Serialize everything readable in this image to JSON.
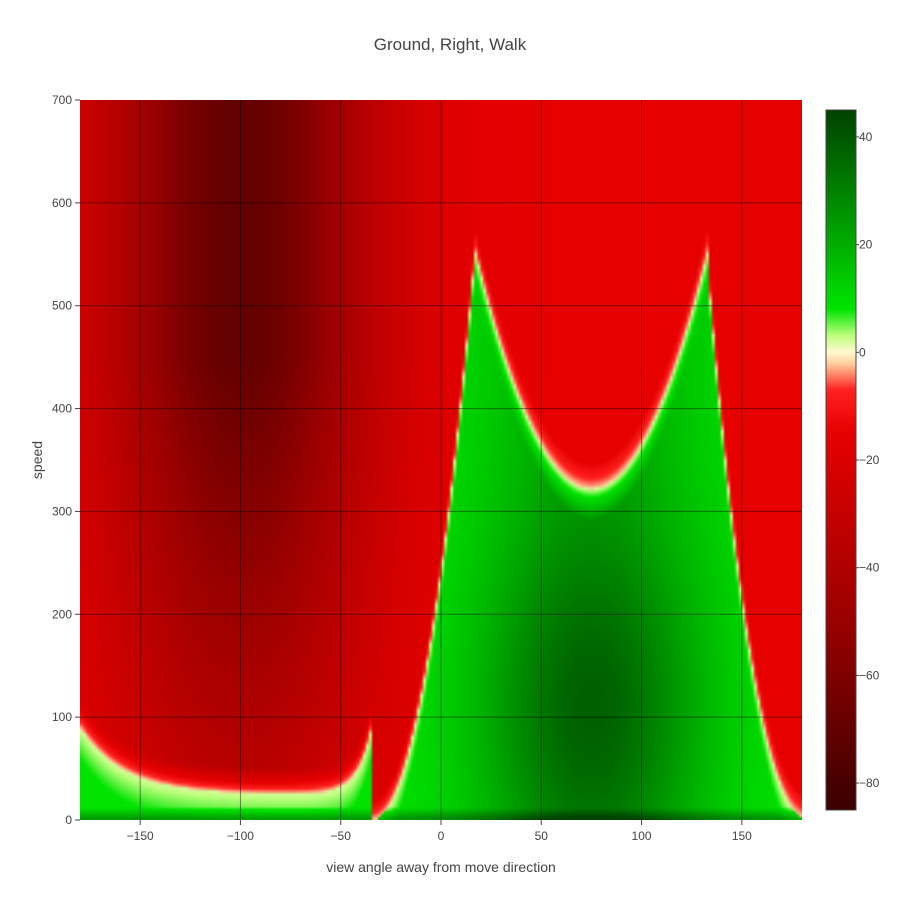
{
  "chart_data": {
    "type": "heatmap",
    "title": "Ground, Right, Walk",
    "xlabel": "view angle away from move direction",
    "ylabel": "speed",
    "xlim": [
      -180,
      180
    ],
    "ylim": [
      0,
      700
    ],
    "x_ticks": [
      -150,
      -100,
      -50,
      0,
      50,
      100,
      150
    ],
    "x_tick_labels": [
      "−150",
      "−100",
      "−50",
      "0",
      "50",
      "100",
      "150"
    ],
    "y_ticks": [
      0,
      100,
      200,
      300,
      400,
      500,
      600,
      700
    ],
    "y_tick_labels": [
      "0",
      "100",
      "200",
      "300",
      "400",
      "500",
      "600",
      "700"
    ],
    "grid": true,
    "colorbar": {
      "range": [
        -85,
        45
      ],
      "ticks": [
        40,
        20,
        0,
        -20,
        -40,
        -60,
        -80
      ],
      "tick_labels": [
        "40",
        "20",
        "0",
        "−20",
        "−40",
        "−60",
        "−80"
      ],
      "colorscale": [
        [
          -85,
          "#3a0000"
        ],
        [
          -50,
          "#9a0000"
        ],
        [
          -15,
          "#e60000"
        ],
        [
          -7,
          "#ff2020"
        ],
        [
          -2,
          "#ffd0a0"
        ],
        [
          0,
          "#fff8d0"
        ],
        [
          3,
          "#c0ff80"
        ],
        [
          8,
          "#00e400"
        ],
        [
          25,
          "#009600"
        ],
        [
          45,
          "#004200"
        ]
      ]
    },
    "features": {
      "low_speed_boundary_speed": 25,
      "left_boundary_angle_min": -105,
      "center_boundary_curve": {
        "vertex_angle": 75,
        "vertex_speed": 322,
        "cusp_angles": [
          17,
          133
        ],
        "cusp_speed": 550
      },
      "outer_boundary_cusps_at_speed_0": [
        -35,
        180
      ],
      "darkest_red_angle": -100,
      "darkest_green_angle": 75,
      "value_range_observed": [
        -85,
        45
      ]
    }
  }
}
